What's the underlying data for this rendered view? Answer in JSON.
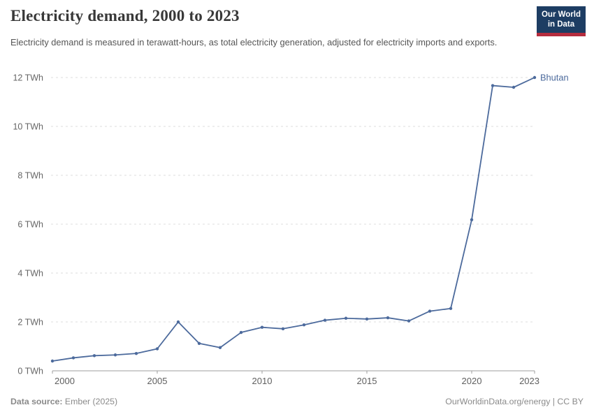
{
  "header": {
    "title": "Electricity demand, 2000 to 2023",
    "subtitle": "Electricity demand is measured in terawatt-hours, as total electricity generation, adjusted for electricity imports and exports.",
    "logo": {
      "line1": "Our World",
      "line2": "in Data"
    }
  },
  "chart_data": {
    "type": "line",
    "title": "Electricity demand, 2000 to 2023",
    "xlabel": "",
    "ylabel": "",
    "unit": "TWh",
    "xlim": [
      2000,
      2023
    ],
    "ylim": [
      0,
      12
    ],
    "grid": "horizontal-dashed",
    "legend_position": "end-of-line-label",
    "xticks": [
      {
        "v": 2000,
        "label": "2000"
      },
      {
        "v": 2005,
        "label": "2005"
      },
      {
        "v": 2010,
        "label": "2010"
      },
      {
        "v": 2015,
        "label": "2015"
      },
      {
        "v": 2020,
        "label": "2020"
      },
      {
        "v": 2023,
        "label": "2023"
      }
    ],
    "yticks": [
      {
        "v": 0,
        "label": "0 TWh"
      },
      {
        "v": 2,
        "label": "2 TWh"
      },
      {
        "v": 4,
        "label": "4 TWh"
      },
      {
        "v": 6,
        "label": "6 TWh"
      },
      {
        "v": 8,
        "label": "8 TWh"
      },
      {
        "v": 10,
        "label": "10 TWh"
      },
      {
        "v": 12,
        "label": "12 TWh"
      }
    ],
    "series": [
      {
        "name": "Bhutan",
        "color": "#4c6a9c",
        "x": [
          2000,
          2001,
          2002,
          2003,
          2004,
          2005,
          2006,
          2007,
          2008,
          2009,
          2010,
          2011,
          2012,
          2013,
          2014,
          2015,
          2016,
          2017,
          2018,
          2019,
          2020,
          2021,
          2022,
          2023
        ],
        "values": [
          0.4,
          0.53,
          0.62,
          0.65,
          0.71,
          0.9,
          2.0,
          1.12,
          0.95,
          1.57,
          1.78,
          1.72,
          1.88,
          2.07,
          2.15,
          2.12,
          2.17,
          2.04,
          2.44,
          2.55,
          6.18,
          11.67,
          11.6,
          12.0
        ]
      }
    ]
  },
  "footer": {
    "source_label": "Data source:",
    "source_value": " Ember (2025)",
    "credit": "OurWorldinData.org/energy | CC BY"
  },
  "colors": {
    "line": "#4c6a9c",
    "gridline": "#dddddd",
    "axis": "#9e9e9e",
    "tick_text": "#666666",
    "title": "#383838",
    "subtitle": "#555555",
    "footer_text": "#8a8a8a",
    "logo_bg": "#1d3d63",
    "logo_accent": "#b52c3e"
  }
}
